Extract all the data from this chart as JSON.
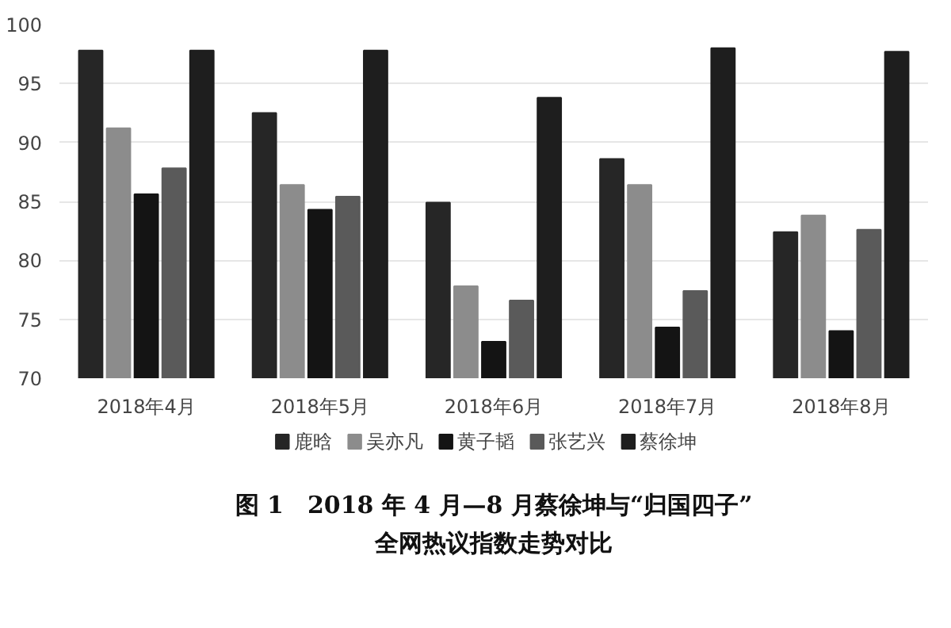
{
  "chart_data": {
    "type": "bar",
    "title": "图 1　2018 年 4 月—8 月蔡徐坤与“归国四子”\n全网热议指数走势对比",
    "categories": [
      "2018年4月",
      "2018年5月",
      "2018年6月",
      "2018年7月",
      "2018年8月"
    ],
    "series": [
      {
        "name": "鹿晗",
        "color": "#262626",
        "values": [
          97.8,
          92.5,
          84.9,
          88.6,
          82.4
        ]
      },
      {
        "name": "吴亦凡",
        "color": "#8c8c8c",
        "values": [
          91.2,
          86.4,
          77.8,
          86.4,
          83.8
        ]
      },
      {
        "name": "黄子韬",
        "color": "#141414",
        "values": [
          85.6,
          84.3,
          73.1,
          74.3,
          74.0
        ]
      },
      {
        "name": "张艺兴",
        "color": "#5a5a5a",
        "values": [
          87.8,
          85.4,
          76.6,
          77.4,
          82.6
        ]
      },
      {
        "name": "蔡徐坤",
        "color": "#1e1e1e",
        "values": [
          97.8,
          97.8,
          93.8,
          98.0,
          97.7
        ]
      }
    ],
    "ylim": [
      70,
      100
    ],
    "yticks": [
      70,
      75,
      80,
      85,
      90,
      95,
      100
    ],
    "grid": "y",
    "legend": "bottom"
  }
}
